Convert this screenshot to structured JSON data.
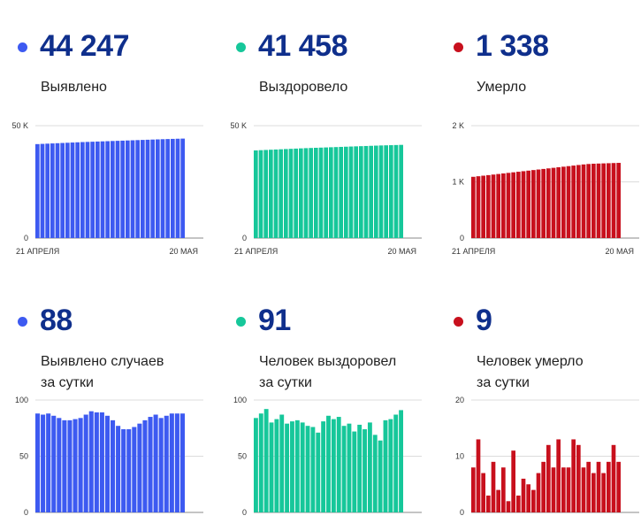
{
  "panels": [
    {
      "id": "p0",
      "color": "#3d5af1",
      "number": "44 247",
      "label_lines": [
        "Выявлено"
      ]
    },
    {
      "id": "p1",
      "color": "#16c79a",
      "number": "41 458",
      "label_lines": [
        "Выздоровело"
      ]
    },
    {
      "id": "p2",
      "color": "#c8101d",
      "number": "1 338",
      "label_lines": [
        "Умерло"
      ]
    },
    {
      "id": "p3",
      "color": "#3d5af1",
      "number": "88",
      "label_lines": [
        "Выявлено случаев",
        "за сутки"
      ]
    },
    {
      "id": "p4",
      "color": "#16c79a",
      "number": "91",
      "label_lines": [
        "Человек выздоровел",
        "за сутки"
      ]
    },
    {
      "id": "p5",
      "color": "#c8101d",
      "number": "9",
      "label_lines": [
        "Человек умерло",
        "за сутки"
      ]
    }
  ],
  "chart_data": [
    {
      "type": "bar",
      "color": "#3d5af1",
      "ylim": [
        0,
        50000
      ],
      "yticks": [
        {
          "v": 0,
          "label": "0"
        },
        {
          "v": 50000,
          "label": "50 K"
        }
      ],
      "x_first_label": "21 АПРЕЛЯ",
      "x_last_label": "20 МАЯ",
      "values": [
        41800,
        41900,
        42000,
        42100,
        42200,
        42300,
        42400,
        42500,
        42600,
        42700,
        42780,
        42860,
        42940,
        43020,
        43100,
        43180,
        43260,
        43340,
        43420,
        43500,
        43580,
        43660,
        43740,
        43820,
        43900,
        43980,
        44050,
        44120,
        44190,
        44247
      ]
    },
    {
      "type": "bar",
      "color": "#16c79a",
      "ylim": [
        0,
        50000
      ],
      "yticks": [
        {
          "v": 0,
          "label": "0"
        },
        {
          "v": 50000,
          "label": "50 K"
        }
      ],
      "x_first_label": "21 АПРЕЛЯ",
      "x_last_label": "20 МАЯ",
      "values": [
        39000,
        39100,
        39200,
        39300,
        39400,
        39500,
        39600,
        39700,
        39800,
        39900,
        40000,
        40080,
        40160,
        40240,
        40320,
        40400,
        40480,
        40560,
        40640,
        40720,
        40800,
        40880,
        40960,
        41040,
        41120,
        41200,
        41260,
        41320,
        41390,
        41458
      ]
    },
    {
      "type": "bar",
      "color": "#c8101d",
      "ylim": [
        0,
        2000
      ],
      "yticks": [
        {
          "v": 0,
          "label": "0"
        },
        {
          "v": 1000,
          "label": "1 K"
        },
        {
          "v": 2000,
          "label": "2 K"
        }
      ],
      "x_first_label": "21 АПРЕЛЯ",
      "x_last_label": "20 МАЯ",
      "values": [
        1090,
        1100,
        1110,
        1120,
        1130,
        1140,
        1150,
        1160,
        1170,
        1180,
        1190,
        1200,
        1210,
        1220,
        1230,
        1240,
        1250,
        1260,
        1270,
        1280,
        1290,
        1300,
        1310,
        1318,
        1323,
        1326,
        1329,
        1332,
        1335,
        1338
      ]
    },
    {
      "type": "bar",
      "color": "#3d5af1",
      "ylim": [
        0,
        100
      ],
      "yticks": [
        {
          "v": 0,
          "label": "0"
        },
        {
          "v": 50,
          "label": "50"
        },
        {
          "v": 100,
          "label": "100"
        }
      ],
      "values": [
        88,
        87,
        88,
        86,
        84,
        82,
        82,
        83,
        84,
        87,
        90,
        89,
        89,
        86,
        82,
        77,
        74,
        74,
        76,
        79,
        82,
        85,
        87,
        84,
        86,
        88,
        88,
        88
      ]
    },
    {
      "type": "bar",
      "color": "#16c79a",
      "ylim": [
        0,
        100
      ],
      "yticks": [
        {
          "v": 0,
          "label": "0"
        },
        {
          "v": 50,
          "label": "50"
        },
        {
          "v": 100,
          "label": "100"
        }
      ],
      "values": [
        84,
        88,
        92,
        80,
        83,
        87,
        79,
        81,
        82,
        80,
        77,
        76,
        71,
        81,
        86,
        83,
        85,
        77,
        79,
        72,
        78,
        74,
        80,
        69,
        64,
        82,
        83,
        87,
        91
      ]
    },
    {
      "type": "bar",
      "color": "#c8101d",
      "ylim": [
        0,
        20
      ],
      "yticks": [
        {
          "v": 0,
          "label": "0"
        },
        {
          "v": 10,
          "label": "10"
        },
        {
          "v": 20,
          "label": "20"
        }
      ],
      "values": [
        8,
        13,
        7,
        3,
        9,
        4,
        8,
        2,
        11,
        3,
        6,
        5,
        4,
        7,
        9,
        12,
        8,
        13,
        8,
        8,
        13,
        12,
        8,
        9,
        7,
        9,
        7,
        9,
        12,
        9
      ]
    }
  ]
}
